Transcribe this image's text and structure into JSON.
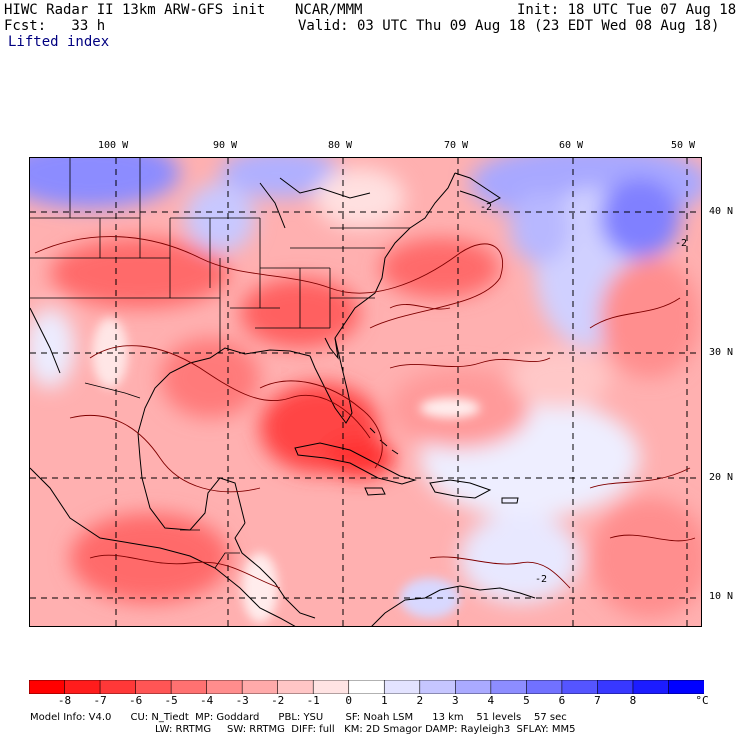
{
  "header": {
    "line1_left": "HIWC Radar II 13km ARW-GFS init",
    "line1_mid": "NCAR/MMM",
    "line1_right": "Init: 18 UTC Tue 07 Aug 18",
    "line2_left": "Fcst:   33 h",
    "line2_right": "Valid: 03 UTC Thu 09 Aug 18 (23 EDT Wed 08 Aug 18)",
    "field": "Lifted index"
  },
  "axes": {
    "lon_labels": [
      "100 W",
      "90 W",
      "80 W",
      "70 W",
      "60 W",
      "50 W"
    ],
    "lat_labels": [
      "40 N",
      "30 N",
      "20 N",
      "10 N"
    ]
  },
  "contour_labels": [
    "-2",
    "-2",
    "-2"
  ],
  "colorbar": {
    "labels": [
      "-8",
      "-7",
      "-6",
      "-5",
      "-4",
      "-3",
      "-2",
      "-1",
      "0",
      "1",
      "2",
      "3",
      "4",
      "5",
      "6",
      "7",
      "8"
    ],
    "unit": "°C",
    "colors": [
      "#ff0000",
      "#ff1c1c",
      "#ff3838",
      "#ff5555",
      "#ff7171",
      "#ff8d8d",
      "#ffaaaa",
      "#ffc6c6",
      "#ffe3e3",
      "#ffffff",
      "#e3e3ff",
      "#c6c6ff",
      "#aaaaff",
      "#8d8dff",
      "#7171ff",
      "#5555ff",
      "#3838ff",
      "#1c1cff",
      "#0000ff"
    ]
  },
  "footer": {
    "line1": "Model Info: V4.0      CU: N_Tiedt  MP: Goddard      PBL: YSU       SF: Noah LSM      13 km    51 levels    57 sec",
    "line2": "LW: RRTMG     SW: RRTMG  DIFF: full   KM: 2D Smagor DAMP: Rayleigh3  SFLAY: MM5"
  }
}
